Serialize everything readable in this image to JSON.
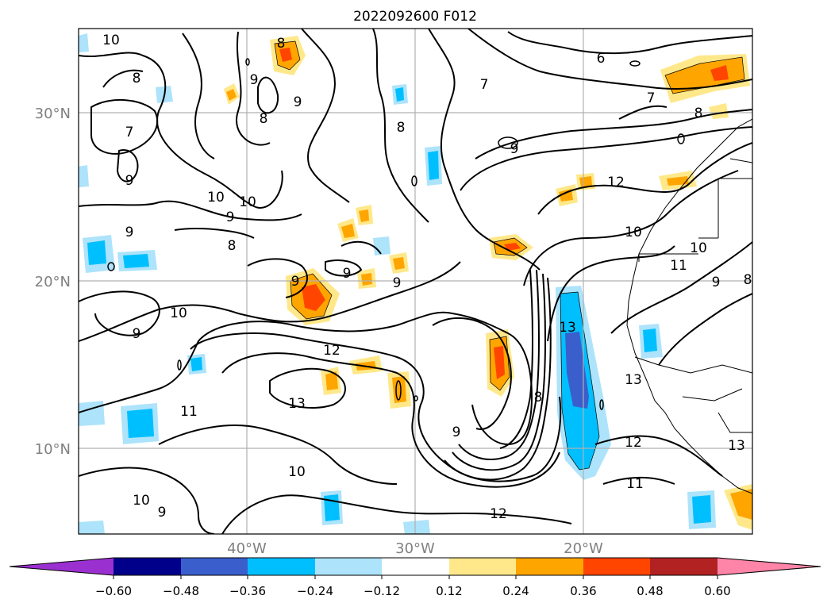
{
  "title": "2022092600 F012",
  "axes": {
    "lat_labels": [
      "30°N",
      "20°N",
      "10°N"
    ],
    "lon_labels": [
      "40°W",
      "30°W",
      "20°W"
    ],
    "label_color": "#808080"
  },
  "contour_labels": [
    "10",
    "8",
    "9",
    "8",
    "9",
    "8",
    "7",
    "9",
    "8",
    "6",
    "7",
    "7",
    "8",
    "9",
    "10",
    "10",
    "9",
    "8",
    "12",
    "10",
    "9",
    "9",
    "9",
    "9",
    "10",
    "9",
    "10",
    "12",
    "13",
    "11",
    "10",
    "9",
    "12",
    "9",
    "8",
    "13",
    "12",
    "11",
    "10",
    "11",
    "9",
    "8",
    "13",
    "13"
  ],
  "colorbar": {
    "ticks": [
      "−0.60",
      "−0.48",
      "−0.36",
      "−0.24",
      "−0.12",
      "0.12",
      "0.24",
      "0.36",
      "0.48",
      "0.60"
    ],
    "colors": [
      "#9b30d0",
      "#00008b",
      "#3a5fcd",
      "#00bfff",
      "#ade3fb",
      "#ffffff",
      "#ffe88a",
      "#ffa500",
      "#ff4500",
      "#b22222",
      "#ff85a8"
    ]
  }
}
